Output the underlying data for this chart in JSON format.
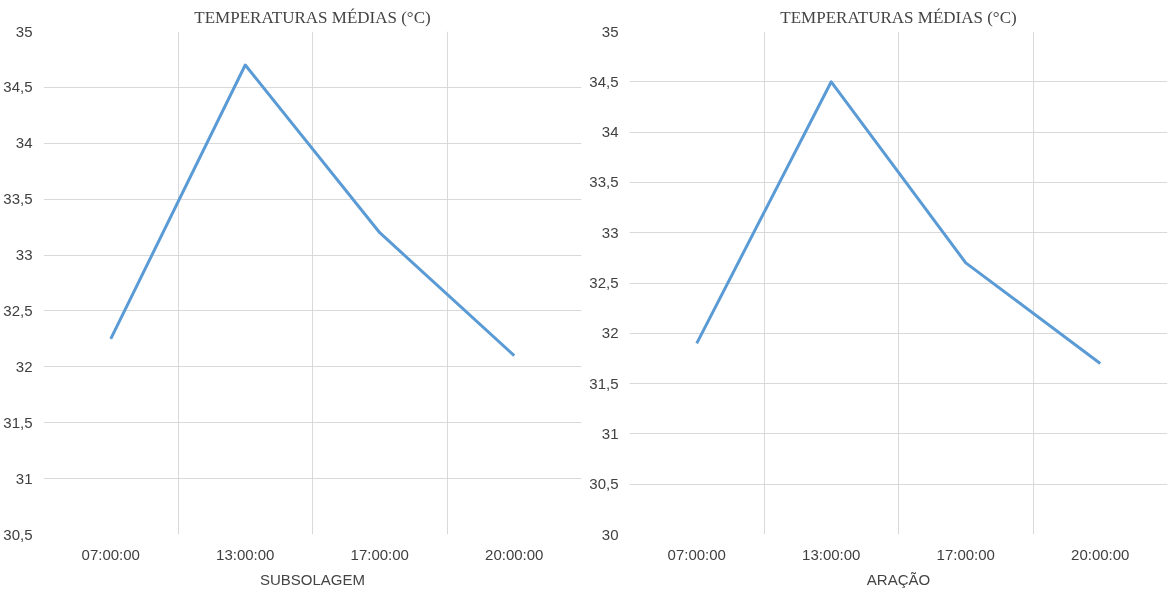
{
  "chart_data": [
    {
      "type": "line",
      "title": "TEMPERATURAS MÉDIAS (°C)",
      "xlabel": "SUBSOLAGEM",
      "categories": [
        "07:00:00",
        "13:00:00",
        "17:00:00",
        "20:00:00"
      ],
      "series": [
        {
          "color": "#5b9bd5",
          "values": [
            32.25,
            34.7,
            33.2,
            32.1
          ]
        }
      ],
      "ylim": [
        30.5,
        35
      ],
      "yticks": [
        {
          "value": 30.5,
          "label": "30,5"
        },
        31,
        {
          "value": 31.5,
          "label": "31,5"
        },
        32,
        {
          "value": 32.5,
          "label": "32,5"
        },
        33,
        {
          "value": 33.5,
          "label": "33,5"
        },
        34,
        {
          "value": 34.5,
          "label": "34,5"
        },
        35
      ],
      "grid": true
    },
    {
      "type": "line",
      "title": "TEMPERATURAS MÉDIAS (°C)",
      "xlabel": "ARAÇÃO",
      "categories": [
        "07:00:00",
        "13:00:00",
        "17:00:00",
        "20:00:00"
      ],
      "series": [
        {
          "color": "#5b9bd5",
          "values": [
            31.9,
            34.5,
            32.7,
            31.7
          ]
        }
      ],
      "ylim": [
        30,
        35
      ],
      "yticks": [
        30,
        {
          "value": 30.5,
          "label": "30,5"
        },
        31,
        {
          "value": 31.5,
          "label": "31,5"
        },
        32,
        {
          "value": 32.5,
          "label": "32,5"
        },
        33,
        {
          "value": 33.5,
          "label": "33,5"
        },
        34,
        {
          "value": 34.5,
          "label": "34,5"
        },
        35
      ],
      "grid": true
    }
  ]
}
